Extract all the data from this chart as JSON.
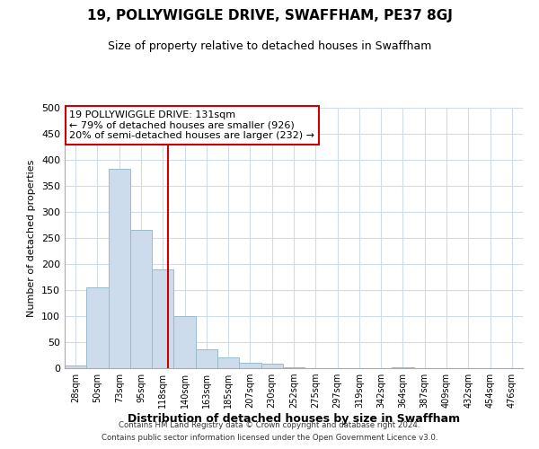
{
  "title": "19, POLLYWIGGLE DRIVE, SWAFFHAM, PE37 8GJ",
  "subtitle": "Size of property relative to detached houses in Swaffham",
  "xlabel": "Distribution of detached houses by size in Swaffham",
  "ylabel": "Number of detached properties",
  "bar_color": "#ccdcec",
  "bar_edge_color": "#99bbcc",
  "bin_labels": [
    "28sqm",
    "50sqm",
    "73sqm",
    "95sqm",
    "118sqm",
    "140sqm",
    "163sqm",
    "185sqm",
    "207sqm",
    "230sqm",
    "252sqm",
    "275sqm",
    "297sqm",
    "319sqm",
    "342sqm",
    "364sqm",
    "387sqm",
    "409sqm",
    "432sqm",
    "454sqm",
    "476sqm"
  ],
  "bar_heights": [
    5,
    155,
    382,
    265,
    190,
    100,
    37,
    21,
    11,
    8,
    2,
    0,
    0,
    0,
    0,
    2,
    0,
    0,
    0,
    0,
    0
  ],
  "ylim": [
    0,
    500
  ],
  "yticks": [
    0,
    50,
    100,
    150,
    200,
    250,
    300,
    350,
    400,
    450,
    500
  ],
  "property_line_bin_index": 4.72,
  "annotation_title": "19 POLLYWIGGLE DRIVE: 131sqm",
  "annotation_line1": "← 79% of detached houses are smaller (926)",
  "annotation_line2": "20% of semi-detached houses are larger (232) →",
  "annotation_box_color": "#ffffff",
  "annotation_box_edge": "#cc0000",
  "vline_color": "#cc0000",
  "footer1": "Contains HM Land Registry data © Crown copyright and database right 2024.",
  "footer2": "Contains public sector information licensed under the Open Government Licence v3.0.",
  "background_color": "#ffffff",
  "grid_color": "#d0dce8"
}
